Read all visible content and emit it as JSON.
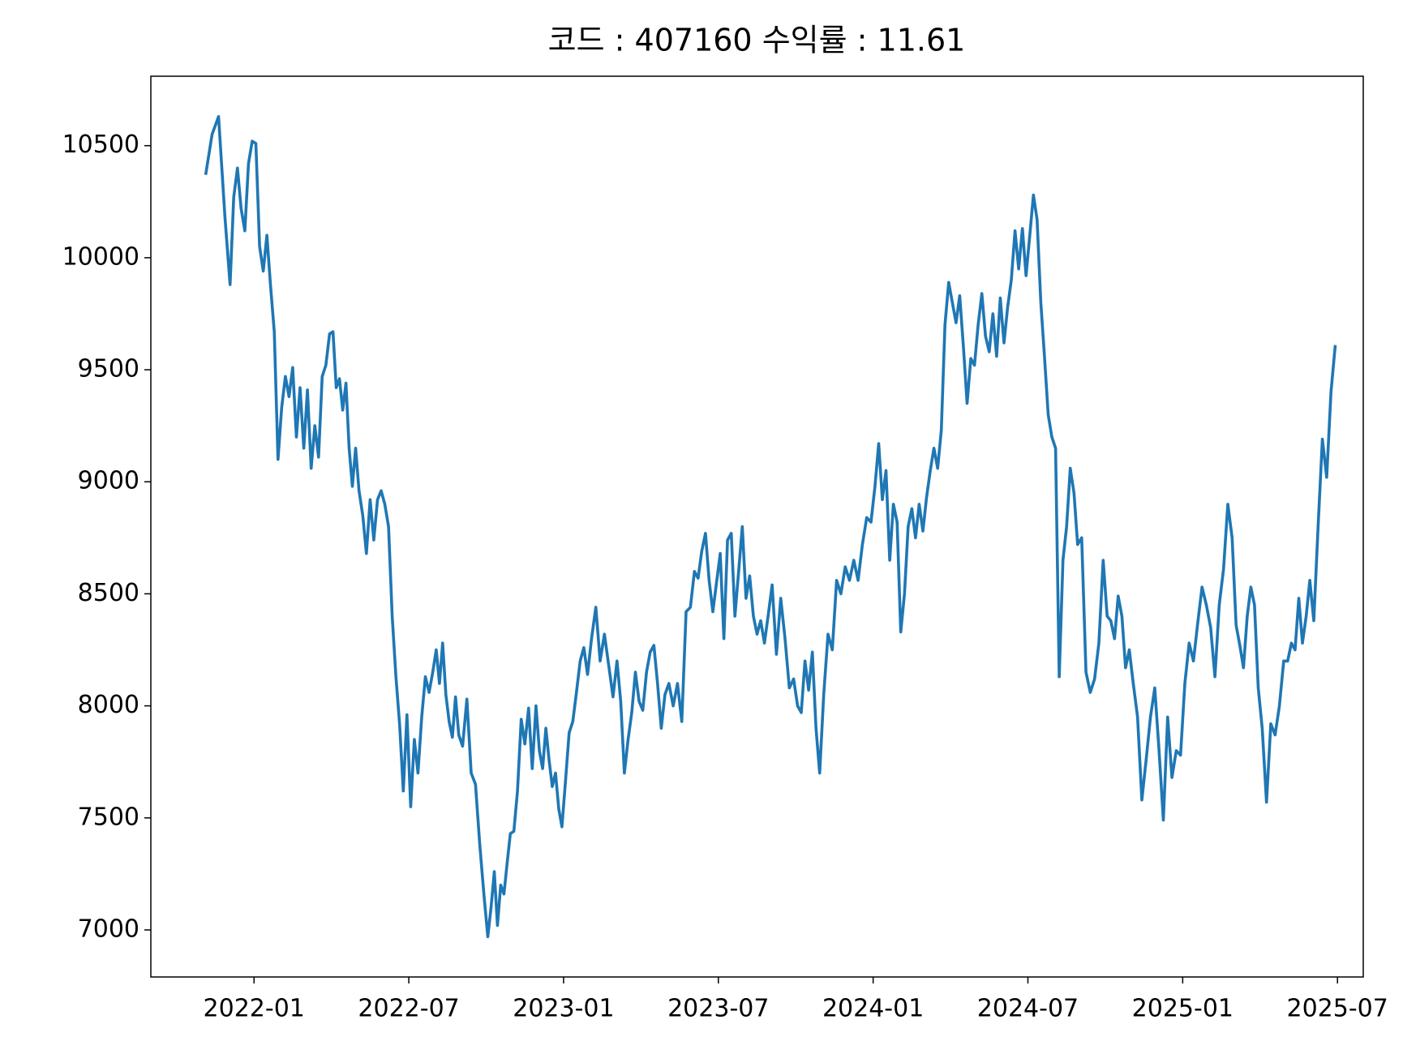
{
  "chart_data": {
    "type": "line",
    "title": "코드 : 407160 수익률 : 11.61",
    "xlim": [
      "2021-09",
      "2025-08"
    ],
    "xticks": [
      "2022-01",
      "2022-07",
      "2023-01",
      "2023-07",
      "2024-01",
      "2024-07",
      "2025-01",
      "2025-07"
    ],
    "ylim": [
      6790,
      10810
    ],
    "yticks": [
      7000,
      7500,
      8000,
      8500,
      9000,
      9500,
      10000,
      10500
    ],
    "grid": false,
    "series": [
      {
        "color": "#1f77b4",
        "x": [
          "2021-11",
          "2021-11",
          "2021-11",
          "2021-11",
          "2021-12",
          "2021-12",
          "2021-12",
          "2021-12",
          "2021-12",
          "2021-12",
          "2021-12",
          "2022-01",
          "2022-01",
          "2022-01",
          "2022-01",
          "2022-01",
          "2022-01",
          "2022-01",
          "2022-02",
          "2022-02",
          "2022-02",
          "2022-02",
          "2022-02",
          "2022-02",
          "2022-02",
          "2022-03",
          "2022-03",
          "2022-03",
          "2022-03",
          "2022-03",
          "2022-03",
          "2022-03",
          "2022-04",
          "2022-04",
          "2022-04",
          "2022-04",
          "2022-04",
          "2022-04",
          "2022-04",
          "2022-04",
          "2022-05",
          "2022-05",
          "2022-05",
          "2022-05",
          "2022-05",
          "2022-05",
          "2022-05",
          "2022-06",
          "2022-06",
          "2022-06",
          "2022-06",
          "2022-06",
          "2022-06",
          "2022-06",
          "2022-07",
          "2022-07",
          "2022-07",
          "2022-07",
          "2022-07",
          "2022-07",
          "2022-07",
          "2022-08",
          "2022-08",
          "2022-08",
          "2022-08",
          "2022-08",
          "2022-08",
          "2022-08",
          "2022-08",
          "2022-09",
          "2022-09",
          "2022-09",
          "2022-09",
          "2022-09",
          "2022-09",
          "2022-10",
          "2022-10",
          "2022-10",
          "2022-10",
          "2022-10",
          "2022-10",
          "2022-10",
          "2022-10",
          "2022-11",
          "2022-11",
          "2022-11",
          "2022-11",
          "2022-11",
          "2022-11",
          "2022-11",
          "2022-12",
          "2022-12",
          "2022-12",
          "2022-12",
          "2022-12",
          "2022-12",
          "2022-12",
          "2022-12",
          "2023-01",
          "2023-01",
          "2023-01",
          "2023-01",
          "2023-01",
          "2023-01",
          "2023-01",
          "2023-02",
          "2023-02",
          "2023-02",
          "2023-02",
          "2023-02",
          "2023-02",
          "2023-03",
          "2023-03",
          "2023-03",
          "2023-03",
          "2023-03",
          "2023-03",
          "2023-03",
          "2023-04",
          "2023-04",
          "2023-04",
          "2023-04",
          "2023-04",
          "2023-04",
          "2023-04",
          "2023-05",
          "2023-05",
          "2023-05",
          "2023-05",
          "2023-05",
          "2023-05",
          "2023-06",
          "2023-06",
          "2023-06",
          "2023-06",
          "2023-06",
          "2023-06",
          "2023-06",
          "2023-07",
          "2023-07",
          "2023-07",
          "2023-07",
          "2023-07",
          "2023-07",
          "2023-07",
          "2023-08",
          "2023-08",
          "2023-08",
          "2023-08",
          "2023-08",
          "2023-08",
          "2023-08",
          "2023-09",
          "2023-09",
          "2023-09",
          "2023-09",
          "2023-09",
          "2023-09",
          "2023-10",
          "2023-10",
          "2023-10",
          "2023-10",
          "2023-10",
          "2023-10",
          "2023-10",
          "2023-11",
          "2023-11",
          "2023-11",
          "2023-11",
          "2023-11",
          "2023-11",
          "2023-12",
          "2023-12",
          "2023-12",
          "2023-12",
          "2023-12",
          "2023-12",
          "2024-01",
          "2024-01",
          "2024-01",
          "2024-01",
          "2024-01",
          "2024-01",
          "2024-01",
          "2024-02",
          "2024-02",
          "2024-02",
          "2024-02",
          "2024-02",
          "2024-02",
          "2024-02",
          "2024-03",
          "2024-03",
          "2024-03",
          "2024-03",
          "2024-03",
          "2024-03",
          "2024-03",
          "2024-04",
          "2024-04",
          "2024-04",
          "2024-04",
          "2024-04",
          "2024-04",
          "2024-04",
          "2024-05",
          "2024-05",
          "2024-05",
          "2024-05",
          "2024-05",
          "2024-05",
          "2024-05",
          "2024-06",
          "2024-06",
          "2024-06",
          "2024-06",
          "2024-06",
          "2024-06",
          "2024-06",
          "2024-07",
          "2024-07",
          "2024-07",
          "2024-07",
          "2024-07",
          "2024-07",
          "2024-07",
          "2024-08",
          "2024-08",
          "2024-08",
          "2024-08",
          "2024-08",
          "2024-08",
          "2024-08",
          "2024-09",
          "2024-09",
          "2024-09",
          "2024-09",
          "2024-09",
          "2024-09",
          "2024-10",
          "2024-10",
          "2024-10",
          "2024-10",
          "2024-10",
          "2024-10",
          "2024-10",
          "2024-11",
          "2024-11",
          "2024-11",
          "2024-11",
          "2024-11",
          "2024-11",
          "2024-12",
          "2024-12",
          "2024-12",
          "2024-12",
          "2024-12",
          "2024-12",
          "2025-01",
          "2025-01",
          "2025-01",
          "2025-01",
          "2025-01",
          "2025-01",
          "2025-02",
          "2025-02",
          "2025-02",
          "2025-02",
          "2025-02",
          "2025-02",
          "2025-03",
          "2025-03",
          "2025-03",
          "2025-03",
          "2025-03",
          "2025-03",
          "2025-03",
          "2025-04",
          "2025-04",
          "2025-04",
          "2025-04",
          "2025-04",
          "2025-04",
          "2025-05",
          "2025-05",
          "2025-05",
          "2025-05",
          "2025-05",
          "2025-05",
          "2025-05",
          "2025-06",
          "2025-06",
          "2025-06",
          "2025-06",
          "2025-06",
          "2025-06"
        ],
        "values": [
          10370,
          10550,
          10630,
          10180,
          9880,
          10270,
          10400,
          10220,
          10120,
          10420,
          10520,
          10510,
          10050,
          9940,
          10100,
          9870,
          9670,
          9100,
          9330,
          9470,
          9380,
          9510,
          9200,
          9420,
          9150,
          9410,
          9060,
          9250,
          9110,
          9470,
          9520,
          9660,
          9670,
          9420,
          9460,
          9320,
          9440,
          9150,
          8980,
          9150,
          8960,
          8850,
          8680,
          8920,
          8740,
          8920,
          8960,
          8900,
          8800,
          8400,
          8130,
          7920,
          7620,
          7960,
          7550,
          7850,
          7700,
          7950,
          8130,
          8060,
          8150,
          8250,
          8100,
          8280,
          8050,
          7930,
          7860,
          8040,
          7870,
          7820,
          8030,
          7700,
          7650,
          7380,
          7150,
          6970,
          7100,
          7260,
          7020,
          7200,
          7160,
          7300,
          7430,
          7440,
          7620,
          7940,
          7830,
          7990,
          7720,
          8000,
          7800,
          7720,
          7900,
          7760,
          7640,
          7700,
          7540,
          7460,
          7660,
          7880,
          7930,
          8060,
          8200,
          8260,
          8140,
          8300,
          8440,
          8200,
          8320,
          8180,
          8040,
          8200,
          8020,
          7700,
          7850,
          7970,
          8150,
          8020,
          7980,
          8150,
          8240,
          8270,
          8100,
          7900,
          8050,
          8100,
          8000,
          8100,
          7930,
          8420,
          8440,
          8600,
          8570,
          8690,
          8770,
          8560,
          8420,
          8550,
          8680,
          8300,
          8740,
          8770,
          8400,
          8600,
          8800,
          8480,
          8580,
          8400,
          8320,
          8380,
          8280,
          8400,
          8540,
          8230,
          8480,
          8300,
          8080,
          8120,
          8000,
          7970,
          8200,
          8070,
          8240,
          7900,
          7700,
          8050,
          8320,
          8250,
          8560,
          8500,
          8620,
          8560,
          8650,
          8560,
          8720,
          8840,
          8820,
          8980,
          9170,
          8920,
          9050,
          8650,
          8900,
          8820,
          8330,
          8500,
          8800,
          8880,
          8750,
          8900,
          8780,
          8930,
          9050,
          9150,
          9060,
          9230,
          9700,
          9890,
          9800,
          9710,
          9830,
          9600,
          9350,
          9550,
          9520,
          9700,
          9840,
          9650,
          9580,
          9750,
          9560,
          9820,
          9620,
          9780,
          9900,
          10120,
          9950,
          10130,
          9920,
          10100,
          10280,
          10170,
          9800,
          9560,
          9300,
          9200,
          9150,
          8130,
          8650,
          8800,
          9060,
          8950,
          8720,
          8750,
          8150,
          8060,
          8120,
          8280,
          8650,
          8400,
          8380,
          8300,
          8490,
          8400,
          8170,
          8250,
          8100,
          7950,
          7580,
          7760,
          7950,
          8080,
          7800,
          7490,
          7950,
          7680,
          7800,
          7780,
          8100,
          8280,
          8200,
          8370,
          8530,
          8450,
          8350,
          8130,
          8450,
          8610,
          8900,
          8750,
          8360,
          8270,
          8170,
          8400,
          8530,
          8450,
          8080,
          7900,
          7570,
          7920,
          7870,
          8000,
          8200,
          8200,
          8280,
          8250,
          8480,
          8280,
          8400,
          8560,
          8380,
          8800,
          9190,
          9020,
          9400,
          9610
        ]
      }
    ]
  }
}
